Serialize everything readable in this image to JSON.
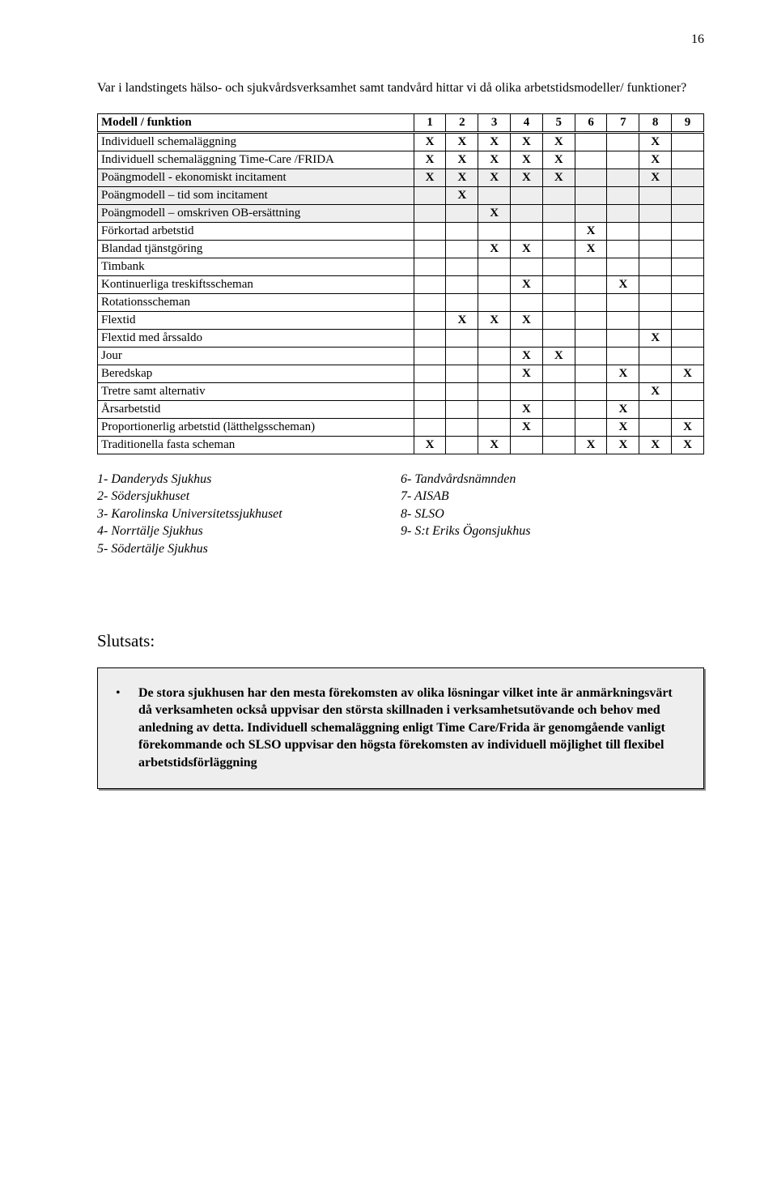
{
  "page_number": "16",
  "intro_text": "Var i landstingets hälso- och sjukvårdsverksamhet samt tandvård  hittar vi då olika arbetstidsmodeller/ funktioner?",
  "table": {
    "header_label": "Modell / funktion",
    "header_nums": [
      "1",
      "2",
      "3",
      "4",
      "5",
      "6",
      "7",
      "8",
      "9"
    ],
    "rows": [
      {
        "label": "Individuell schemaläggning",
        "shaded": false,
        "marks": [
          "X",
          "X",
          "X",
          "X",
          "X",
          "",
          "",
          "X",
          ""
        ]
      },
      {
        "label": "Individuell schemaläggning Time-Care /FRIDA",
        "shaded": false,
        "marks": [
          "X",
          "X",
          "X",
          "X",
          "X",
          "",
          "",
          "X",
          ""
        ]
      },
      {
        "label": "Poängmodell - ekonomiskt incitament",
        "shaded": true,
        "marks": [
          "X",
          "X",
          "X",
          "X",
          "X",
          "",
          "",
          "X",
          ""
        ]
      },
      {
        "label": "Poängmodell – tid som incitament",
        "shaded": true,
        "marks": [
          "",
          "X",
          "",
          "",
          "",
          "",
          "",
          "",
          ""
        ]
      },
      {
        "label": "Poängmodell – omskriven OB-ersättning",
        "shaded": true,
        "marks": [
          "",
          "",
          "X",
          "",
          "",
          "",
          "",
          "",
          ""
        ]
      },
      {
        "label": "Förkortad arbetstid",
        "shaded": false,
        "marks": [
          "",
          "",
          "",
          "",
          "",
          "X",
          "",
          "",
          ""
        ]
      },
      {
        "label": "Blandad tjänstgöring",
        "shaded": false,
        "marks": [
          "",
          "",
          "X",
          "X",
          "",
          "X",
          "",
          "",
          ""
        ]
      },
      {
        "label": "Timbank",
        "shaded": false,
        "marks": [
          "",
          "",
          "",
          "",
          "",
          "",
          "",
          "",
          ""
        ]
      },
      {
        "label": "Kontinuerliga treskiftsscheman",
        "shaded": false,
        "marks": [
          "",
          "",
          "",
          "X",
          "",
          "",
          "X",
          "",
          ""
        ]
      },
      {
        "label": "Rotationsscheman",
        "shaded": false,
        "marks": [
          "",
          "",
          "",
          "",
          "",
          "",
          "",
          "",
          ""
        ]
      },
      {
        "label": "Flextid",
        "shaded": false,
        "marks": [
          "",
          "X",
          "X",
          "X",
          "",
          "",
          "",
          "",
          ""
        ]
      },
      {
        "label": "Flextid med årssaldo",
        "shaded": false,
        "marks": [
          "",
          "",
          "",
          "",
          "",
          "",
          "",
          "X",
          ""
        ]
      },
      {
        "label": "Jour",
        "shaded": false,
        "marks": [
          "",
          "",
          "",
          "X",
          "X",
          "",
          "",
          "",
          ""
        ]
      },
      {
        "label": "Beredskap",
        "shaded": false,
        "marks": [
          "",
          "",
          "",
          "X",
          "",
          "",
          "X",
          "",
          "X"
        ]
      },
      {
        "label": "Tretre samt alternativ",
        "shaded": false,
        "marks": [
          "",
          "",
          "",
          "",
          "",
          "",
          "",
          "X",
          ""
        ]
      },
      {
        "label": "Årsarbetstid",
        "shaded": false,
        "marks": [
          "",
          "",
          "",
          "X",
          "",
          "",
          "X",
          "",
          ""
        ]
      },
      {
        "label": "Proportionerlig arbetstid (lätthelgsscheman)",
        "shaded": false,
        "marks": [
          "",
          "",
          "",
          "X",
          "",
          "",
          "X",
          "",
          "X"
        ]
      },
      {
        "label": "Traditionella fasta scheman",
        "shaded": false,
        "marks": [
          "X",
          "",
          "X",
          "",
          "",
          "X",
          "X",
          "X",
          "X"
        ]
      }
    ]
  },
  "legend_left": [
    "1- Danderyds Sjukhus",
    "2- Södersjukhuset",
    "3- Karolinska Universitetssjukhuset",
    "4- Norrtälje Sjukhus",
    "5- Södertälje Sjukhus"
  ],
  "legend_right": [
    "6- Tandvårdsnämnden",
    "7- AISAB",
    "8- SLSO",
    "9- S:t Eriks Ögonsjukhus"
  ],
  "slutsats_heading": "Slutsats:",
  "conclusion_text": "De stora sjukhusen har den mesta förekomsten av olika lösningar vilket inte är anmärkningsvärt då verksamheten också uppvisar den största skillnaden i verksamhetsutövande och behov med anledning av detta. Individuell schemaläggning enligt Time Care/Frida är genomgående vanligt förekommande och SLSO uppvisar den högsta förekomsten av individuell möjlighet till flexibel arbetstidsförläggning"
}
